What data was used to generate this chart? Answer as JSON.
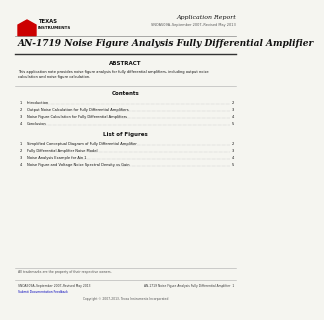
{
  "background_color": "#f5f5f0",
  "header": {
    "app_report_text": "Application Report",
    "doc_number": "SNOA509A–September 2007–Revised May 2013",
    "ti_logo_color": "#cc0000",
    "ti_text_1": "TEXAS",
    "ti_text_2": "INSTRUMENTS"
  },
  "title": "AN-1719 Noise Figure Analysis Fully Differential Amplifier",
  "abstract": {
    "heading": "ABSTRACT",
    "text_line1": "This application note provides noise figure analysis for fully differential amplifiers, including output noise",
    "text_line2": "calculation and noise figure calculation."
  },
  "contents": {
    "heading": "Contents",
    "items": [
      [
        "1",
        "Introduction",
        "2"
      ],
      [
        "2",
        "Output Noise Calculation for Fully Differential Amplifiers",
        "3"
      ],
      [
        "3",
        "Noise Figure Calculation for Fully Differential Amplifiers",
        "4"
      ],
      [
        "4",
        "Conclusion",
        "5"
      ]
    ]
  },
  "figures": {
    "heading": "List of Figures",
    "items": [
      [
        "1",
        "Simplified Conceptual Diagram of Fully Differential Amplifier",
        "2"
      ],
      [
        "2",
        "Fully Differential Amplifier Noise Model",
        "3"
      ],
      [
        "3",
        "Noise Analysis Example for Ain 1",
        "4"
      ],
      [
        "4",
        "Noise Figure and Voltage Noise Spectral Density vs Gain",
        "5"
      ]
    ]
  },
  "footer": {
    "trademark_text": "All trademarks are the property of their respective owners.",
    "doc_left": "SNOA509A–September 2007–Revised May 2013",
    "doc_right": "AN-1719 Noise Figure Analysis Fully Differential Amplifier",
    "page_num": "1",
    "link_text": "Submit Documentation Feedback",
    "copyright": "Copyright © 2007-2013, Texas Instruments Incorporated"
  }
}
